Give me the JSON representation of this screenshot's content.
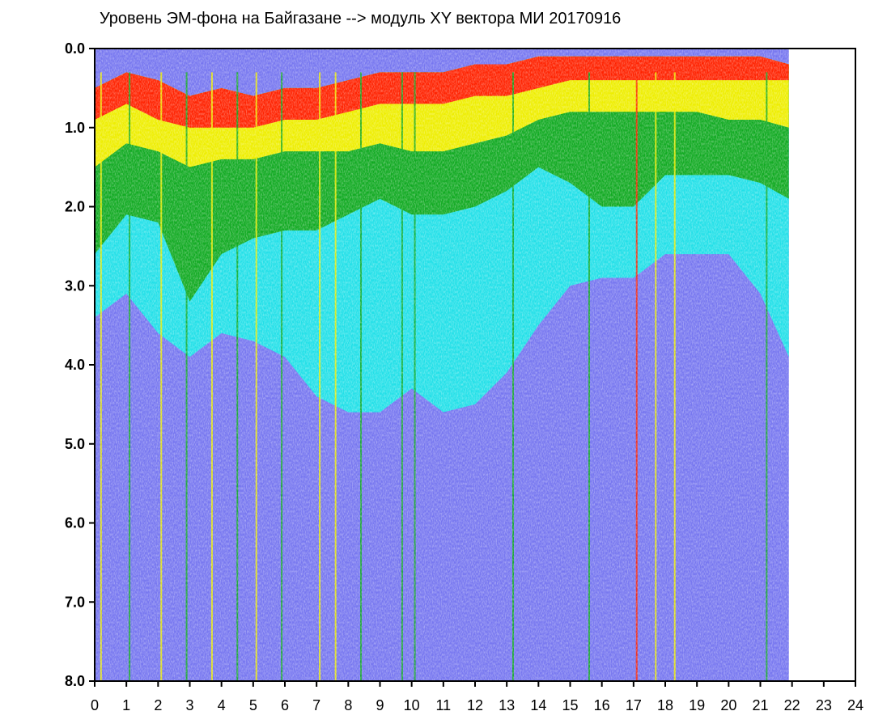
{
  "chart_data": {
    "type": "heatmap",
    "title": "Уровень ЭМ-фона на Байгазане  -->  модуль XY вектора МИ  20170916",
    "xlabel": "",
    "ylabel": "",
    "xlim": [
      0,
      24
    ],
    "ylim": [
      8.0,
      0.0
    ],
    "y_axis_inverted": true,
    "x_ticks": [
      "0",
      "1",
      "2",
      "3",
      "4",
      "5",
      "6",
      "7",
      "8",
      "9",
      "10",
      "11",
      "12",
      "13",
      "14",
      "15",
      "16",
      "17",
      "18",
      "19",
      "20",
      "21",
      "22",
      "23",
      "24"
    ],
    "y_ticks": [
      "0.0",
      "1.0",
      "2.0",
      "3.0",
      "4.0",
      "5.0",
      "6.0",
      "7.0",
      "8.0"
    ],
    "data_end_x": 21.9,
    "grid": false,
    "legend": "none",
    "colorscale": [
      "#2233dd",
      "#7777f0",
      "#22e0e8",
      "#11aa22",
      "#eeee00",
      "#ff2200"
    ],
    "background_color": "#ffffff",
    "spectral_boundaries": {
      "x": [
        0,
        1,
        2,
        3,
        4,
        5,
        6,
        7,
        8,
        9,
        10,
        11,
        12,
        13,
        14,
        15,
        16,
        17,
        18,
        19,
        20,
        21,
        21.9
      ],
      "top_edge": [
        0.5,
        0.3,
        0.4,
        0.6,
        0.5,
        0.6,
        0.5,
        0.5,
        0.4,
        0.3,
        0.3,
        0.3,
        0.2,
        0.2,
        0.1,
        0.1,
        0.1,
        0.1,
        0.1,
        0.1,
        0.1,
        0.1,
        0.2
      ],
      "red_to_yellow": [
        0.9,
        0.7,
        0.9,
        1.0,
        1.0,
        1.0,
        0.9,
        0.9,
        0.8,
        0.7,
        0.7,
        0.7,
        0.6,
        0.6,
        0.5,
        0.4,
        0.4,
        0.4,
        0.4,
        0.4,
        0.4,
        0.4,
        0.4
      ],
      "yellow_to_green": [
        1.5,
        1.2,
        1.3,
        1.5,
        1.4,
        1.4,
        1.3,
        1.3,
        1.3,
        1.2,
        1.3,
        1.3,
        1.2,
        1.1,
        0.9,
        0.8,
        0.8,
        0.8,
        0.8,
        0.8,
        0.9,
        0.9,
        1.0
      ],
      "green_to_cyan": [
        2.6,
        2.1,
        2.2,
        3.2,
        2.6,
        2.4,
        2.3,
        2.3,
        2.1,
        1.9,
        2.1,
        2.1,
        2.0,
        1.8,
        1.5,
        1.7,
        2.0,
        2.0,
        1.6,
        1.6,
        1.6,
        1.7,
        1.9
      ],
      "cyan_to_blue": [
        3.4,
        3.1,
        3.6,
        3.9,
        3.6,
        3.7,
        3.9,
        4.4,
        4.6,
        4.6,
        4.3,
        4.6,
        4.5,
        4.1,
        3.5,
        3.0,
        2.9,
        2.9,
        2.6,
        2.6,
        2.6,
        3.1,
        3.9
      ]
    },
    "vertical_streaks": [
      {
        "x": 0.2,
        "color": "#eeee00"
      },
      {
        "x": 1.1,
        "color": "#11aa22"
      },
      {
        "x": 2.1,
        "color": "#eeee00"
      },
      {
        "x": 2.9,
        "color": "#11aa22"
      },
      {
        "x": 3.7,
        "color": "#eeee00"
      },
      {
        "x": 4.5,
        "color": "#11aa22"
      },
      {
        "x": 5.1,
        "color": "#eeee00"
      },
      {
        "x": 5.9,
        "color": "#11aa22"
      },
      {
        "x": 7.1,
        "color": "#eeee00"
      },
      {
        "x": 7.6,
        "color": "#eeee00"
      },
      {
        "x": 8.4,
        "color": "#11aa22"
      },
      {
        "x": 9.7,
        "color": "#11aa22"
      },
      {
        "x": 10.1,
        "color": "#11aa22"
      },
      {
        "x": 13.2,
        "color": "#11aa22"
      },
      {
        "x": 15.6,
        "color": "#11aa22"
      },
      {
        "x": 17.1,
        "color": "#ff2200"
      },
      {
        "x": 17.7,
        "color": "#eeee00"
      },
      {
        "x": 18.3,
        "color": "#eeee00"
      },
      {
        "x": 21.2,
        "color": "#11aa22"
      }
    ]
  }
}
